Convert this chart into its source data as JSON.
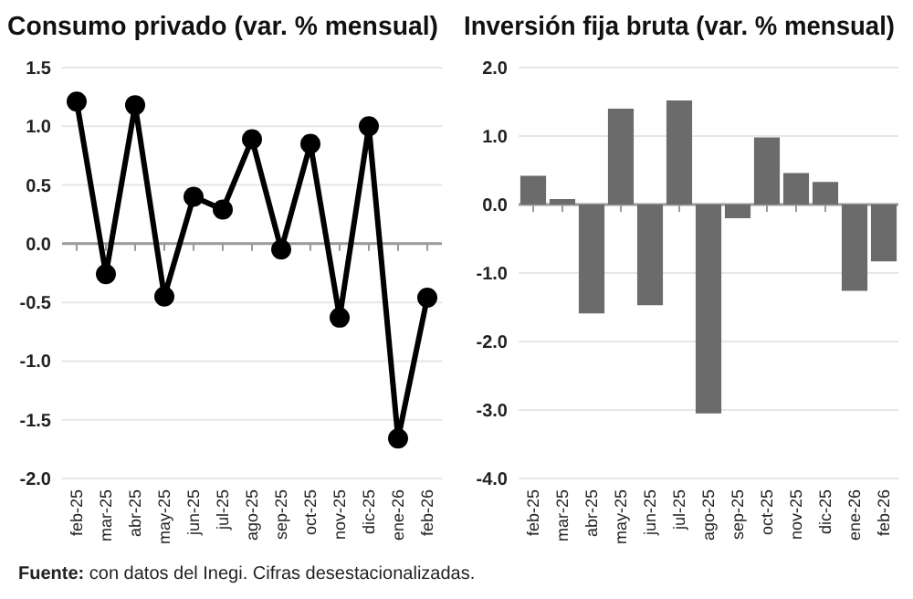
{
  "chart_data": [
    {
      "type": "line",
      "title": "Consumo privado (var. % mensual)",
      "categories": [
        "feb-25",
        "mar-25",
        "abr-25",
        "may-25",
        "jun-25",
        "jul-25",
        "ago-25",
        "sep-25",
        "oct-25",
        "nov-25",
        "dic-25",
        "ene-26",
        "feb-26"
      ],
      "series": [
        {
          "color": "#000000",
          "values": [
            1.21,
            -0.26,
            1.18,
            -0.45,
            0.4,
            0.29,
            0.89,
            -0.05,
            0.85,
            -0.63,
            1.0,
            -1.66,
            -0.46
          ]
        }
      ],
      "ylim": [
        -2.0,
        1.5
      ],
      "yticks": [
        {
          "value": -2,
          "label": "-2.0"
        },
        {
          "value": -1.5,
          "label": "-1.5"
        },
        {
          "value": -1,
          "label": "-1.0"
        },
        {
          "value": -0.5,
          "label": "-0.5"
        },
        {
          "value": 0,
          "label": "0.0"
        },
        {
          "value": 0.5,
          "label": "0.5"
        },
        {
          "value": 1,
          "label": "1.0"
        },
        {
          "value": 1.5,
          "label": "1.5"
        }
      ],
      "grid": "y",
      "marker": "circle",
      "line_style": "solid",
      "annotations": [
        "Fuente: con datos del Inegi. Cifras desestacionalizadas."
      ]
    },
    {
      "type": "bar",
      "title": "Inversión fija bruta (var. % mensual)",
      "categories": [
        "feb-25",
        "mar-25",
        "abr-25",
        "may-25",
        "jun-25",
        "jul-25",
        "ago-25",
        "sep-25",
        "oct-25",
        "nov-25",
        "dic-25",
        "ene-26",
        "feb-26"
      ],
      "series": [
        {
          "color": "#6b6b6b",
          "values": [
            0.42,
            0.08,
            -1.59,
            1.4,
            -1.47,
            1.52,
            -3.05,
            -0.2,
            0.98,
            0.46,
            0.33,
            -1.26,
            -0.83
          ]
        }
      ],
      "ylim": [
        -4.0,
        2.0
      ],
      "yticks": [
        {
          "value": -4,
          "label": "-4.0"
        },
        {
          "value": -3,
          "label": "-3.0"
        },
        {
          "value": -2,
          "label": "-2.0"
        },
        {
          "value": -1,
          "label": "-1.0"
        },
        {
          "value": 0,
          "label": "0.0"
        },
        {
          "value": 1,
          "label": "1.0"
        },
        {
          "value": 2,
          "label": "2.0"
        }
      ],
      "grid": "y"
    }
  ]
}
